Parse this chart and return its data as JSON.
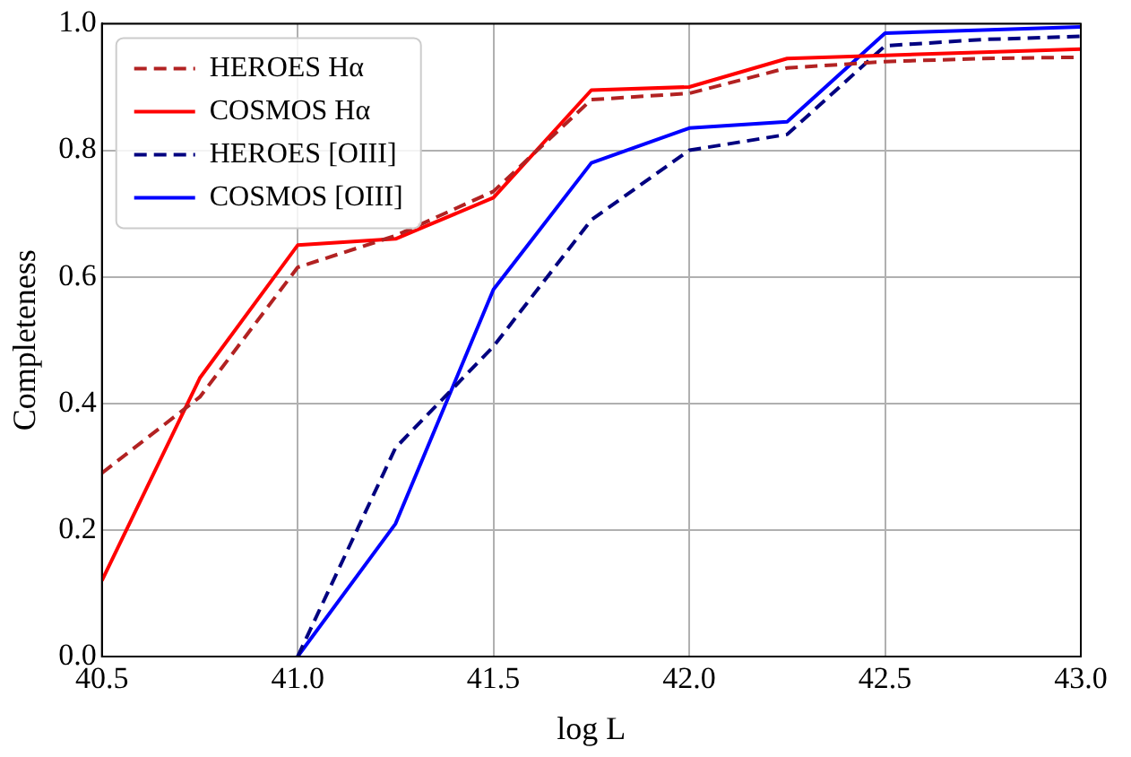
{
  "chart_data": {
    "type": "line",
    "xlabel": "log L",
    "ylabel": "Completeness",
    "x": [
      40.5,
      40.75,
      41.0,
      41.25,
      41.5,
      41.75,
      42.0,
      42.25,
      42.5,
      42.75,
      43.0
    ],
    "series": [
      {
        "name": "HEROES Hα",
        "color": "#b22222",
        "line_style": "dashed",
        "values": [
          0.29,
          0.41,
          0.615,
          0.665,
          0.735,
          0.88,
          0.89,
          0.93,
          0.94,
          0.945,
          0.947
        ]
      },
      {
        "name": "COSMOS Hα",
        "color": "#ff0000",
        "line_style": "solid",
        "values": [
          0.12,
          0.44,
          0.65,
          0.66,
          0.725,
          0.895,
          0.9,
          0.945,
          0.95,
          0.955,
          0.96
        ]
      },
      {
        "name": "HEROES [OIII]",
        "color": "#000080",
        "line_style": "dashed",
        "values": [
          null,
          null,
          0.0,
          0.33,
          0.49,
          0.69,
          0.8,
          0.825,
          0.965,
          0.975,
          0.98
        ]
      },
      {
        "name": "COSMOS [OIII]",
        "color": "#0000ff",
        "line_style": "solid",
        "values": [
          null,
          null,
          0.0,
          0.21,
          0.58,
          0.78,
          0.835,
          0.845,
          0.985,
          0.99,
          0.995
        ]
      }
    ],
    "xlim": [
      40.5,
      43.0
    ],
    "xticks": [
      40.5,
      {
        "value": 41.0,
        "label": "41.0"
      },
      41.5,
      {
        "value": 42.0,
        "label": "42.0"
      },
      42.5,
      {
        "value": 43.0,
        "label": "43.0"
      }
    ],
    "ylim": [
      0,
      1.0
    ],
    "yticks": [
      {
        "value": 0,
        "label": "0.0"
      },
      0.2,
      0.4,
      0.6,
      0.8,
      {
        "value": 1.0,
        "label": "1.0"
      }
    ],
    "grid": true,
    "legend": "top left",
    "marker": "none"
  }
}
